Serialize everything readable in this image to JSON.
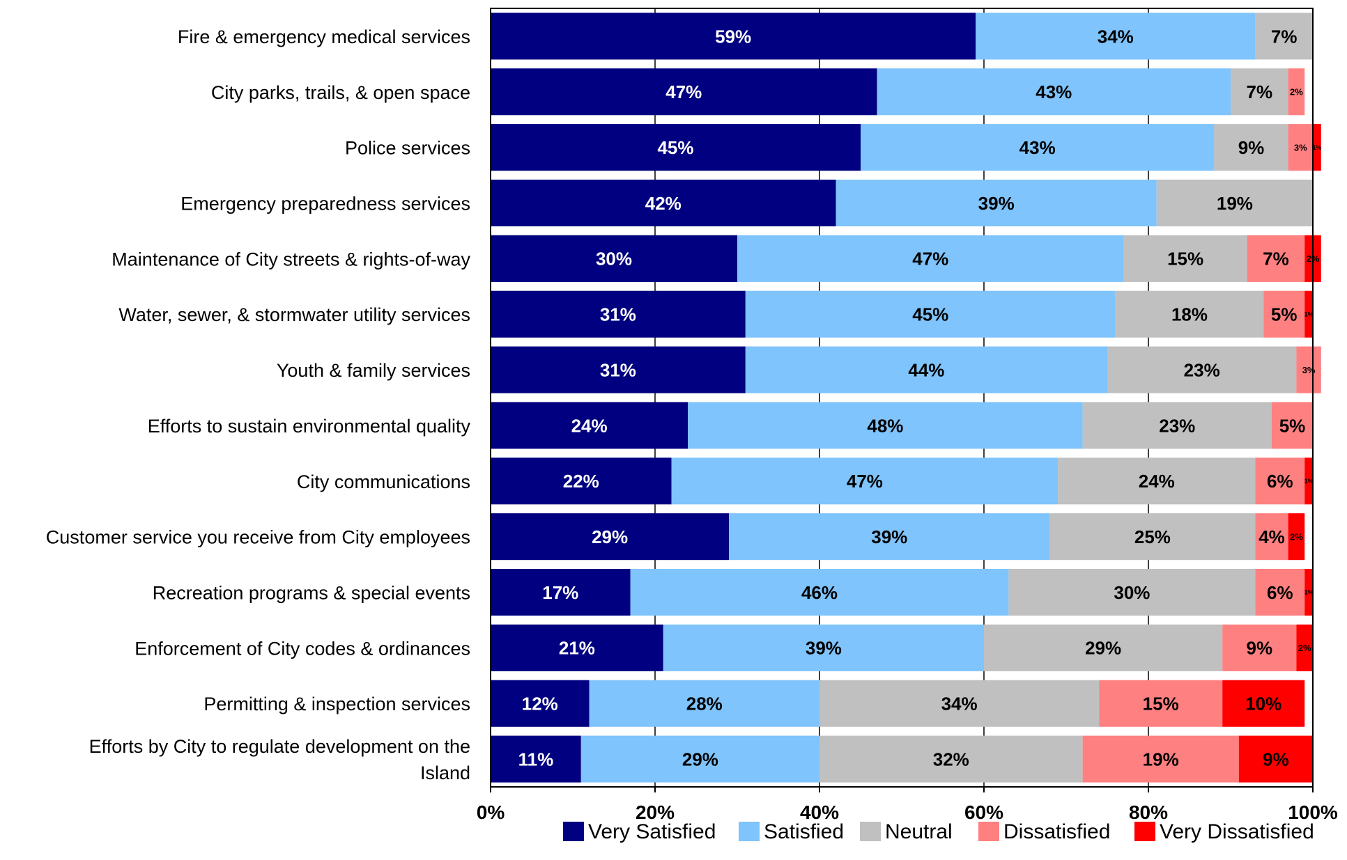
{
  "chart_data": {
    "type": "bar",
    "orientation": "horizontal",
    "stacked": true,
    "categories": [
      "Fire & emergency medical services",
      "City parks, trails, & open space",
      "Police services",
      "Emergency preparedness services",
      "Maintenance of City streets & rights-of-way",
      "Water, sewer, & stormwater utility services",
      "Youth & family services",
      "Efforts to sustain environmental quality",
      "City communications",
      "Customer service you receive from City employees",
      "Recreation programs & special events",
      "Enforcement of City codes & ordinances",
      "Permitting & inspection services",
      "Efforts by City to regulate development on the Island"
    ],
    "category_lines": [
      [
        "Fire & emergency medical services"
      ],
      [
        "City parks, trails, & open space"
      ],
      [
        "Police services"
      ],
      [
        "Emergency preparedness services"
      ],
      [
        "Maintenance of City streets & rights-of-way"
      ],
      [
        "Water, sewer, & stormwater utility services"
      ],
      [
        "Youth & family services"
      ],
      [
        "Efforts to sustain environmental quality"
      ],
      [
        "City communications"
      ],
      [
        "Customer service you receive from City employees"
      ],
      [
        "Recreation programs & special events"
      ],
      [
        "Enforcement of City codes & ordinances"
      ],
      [
        "Permitting & inspection services"
      ],
      [
        "Efforts by City to regulate development on the",
        "Island"
      ]
    ],
    "series": [
      {
        "name": "Very Satisfied",
        "color": "#000080",
        "label_color": "#ffffff",
        "values": [
          59,
          47,
          45,
          42,
          30,
          31,
          31,
          24,
          22,
          29,
          17,
          21,
          12,
          11
        ],
        "labels": [
          "59%",
          "47%",
          "45%",
          "42%",
          "30%",
          "31%",
          "31%",
          "24%",
          "22%",
          "29%",
          "17%",
          "21%",
          "12%",
          "11%"
        ]
      },
      {
        "name": "Satisfied",
        "color": "#7fc4fc",
        "label_color": "#000000",
        "values": [
          34,
          43,
          43,
          39,
          47,
          45,
          44,
          48,
          47,
          39,
          46,
          39,
          28,
          29
        ],
        "labels": [
          "34%",
          "43%",
          "43%",
          "39%",
          "47%",
          "45%",
          "44%",
          "48%",
          "47%",
          "39%",
          "46%",
          "39%",
          "28%",
          "29%"
        ]
      },
      {
        "name": "Neutral",
        "color": "#c0c0c0",
        "label_color": "#000000",
        "values": [
          7,
          7,
          9,
          19,
          15,
          18,
          23,
          23,
          24,
          25,
          30,
          29,
          34,
          32
        ],
        "labels": [
          "7%",
          "7%",
          "9%",
          "19%",
          "15%",
          "18%",
          "23%",
          "23%",
          "24%",
          "25%",
          "30%",
          "29%",
          "34%",
          "32%"
        ]
      },
      {
        "name": "Dissatisfied",
        "color": "#ff8080",
        "label_color": "#000000",
        "values": [
          0,
          2,
          3,
          0,
          7,
          5,
          3,
          5,
          6,
          4,
          6,
          9,
          15,
          19
        ],
        "labels": [
          "",
          "2%",
          "3%",
          "",
          "7%",
          "5%",
          "3%",
          "5%",
          "6%",
          "4%",
          "6%",
          "9%",
          "15%",
          "19%"
        ]
      },
      {
        "name": "Very Dissatisfied",
        "color": "#ff0000",
        "label_color": "#000000",
        "values": [
          0,
          0,
          1,
          0,
          2,
          1,
          0,
          0,
          1,
          2,
          1,
          2,
          10,
          9
        ],
        "labels": [
          "",
          "",
          "1%",
          "",
          "2%",
          "1%",
          "",
          "",
          "1%",
          "2%",
          "1%",
          "2%",
          "10%",
          "9%"
        ]
      }
    ],
    "xlim": [
      0,
      100
    ],
    "x_ticks": [
      "0%",
      "20%",
      "40%",
      "60%",
      "80%",
      "100%"
    ],
    "grid": true,
    "legend_position": "bottom"
  }
}
